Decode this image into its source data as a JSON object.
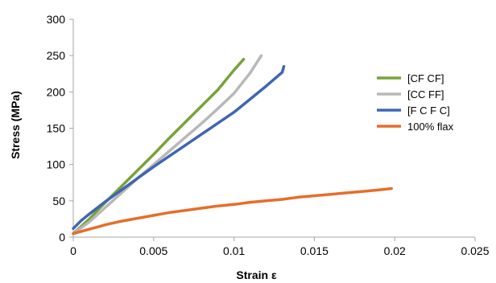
{
  "chart_data": {
    "type": "line",
    "title": "",
    "xlabel": "Strain ε",
    "ylabel": "Stress (MPa)",
    "xlim": [
      0,
      0.025
    ],
    "ylim": [
      0,
      300
    ],
    "x_ticks": [
      "0",
      "0.005",
      "0.01",
      "0.015",
      "0.02",
      "0.025"
    ],
    "y_ticks": [
      "0",
      "50",
      "100",
      "150",
      "200",
      "250",
      "300"
    ],
    "grid": false,
    "legend_position": "right",
    "series": [
      {
        "name": "[CF CF]",
        "color": "#77a33a",
        "x": [
          0,
          0.001,
          0.002,
          0.003,
          0.004,
          0.005,
          0.006,
          0.007,
          0.008,
          0.009,
          0.01,
          0.0106
        ],
        "y": [
          5,
          25,
          48,
          70,
          92,
          114,
          137,
          159,
          181,
          203,
          230,
          245
        ]
      },
      {
        "name": "[CC FF]",
        "color": "#b8b8b8",
        "x": [
          0,
          0.001,
          0.002,
          0.003,
          0.004,
          0.005,
          0.006,
          0.007,
          0.008,
          0.009,
          0.01,
          0.011,
          0.0117
        ],
        "y": [
          5,
          21,
          41,
          61,
          81,
          100,
          119,
          138,
          157,
          177,
          198,
          226,
          250
        ]
      },
      {
        "name": "[F C F C]",
        "color": "#3f66b3",
        "x": [
          0,
          0.0005,
          0.001,
          0.002,
          0.003,
          0.004,
          0.005,
          0.006,
          0.007,
          0.008,
          0.009,
          0.01,
          0.011,
          0.012,
          0.013,
          0.0131
        ],
        "y": [
          12,
          23,
          32,
          49,
          65,
          81,
          97,
          112,
          127,
          142,
          157,
          172,
          190,
          208,
          227,
          235
        ]
      },
      {
        "name": "100% flax",
        "color": "#e56e2b",
        "x": [
          0,
          0.001,
          0.002,
          0.003,
          0.004,
          0.005,
          0.006,
          0.007,
          0.008,
          0.009,
          0.01,
          0.011,
          0.012,
          0.013,
          0.014,
          0.015,
          0.016,
          0.017,
          0.018,
          0.019,
          0.0198
        ],
        "y": [
          5,
          11,
          17,
          22,
          26,
          30,
          34,
          37,
          40,
          43,
          45,
          48,
          50,
          52,
          55,
          57,
          59,
          61,
          63,
          65,
          67
        ]
      }
    ]
  }
}
